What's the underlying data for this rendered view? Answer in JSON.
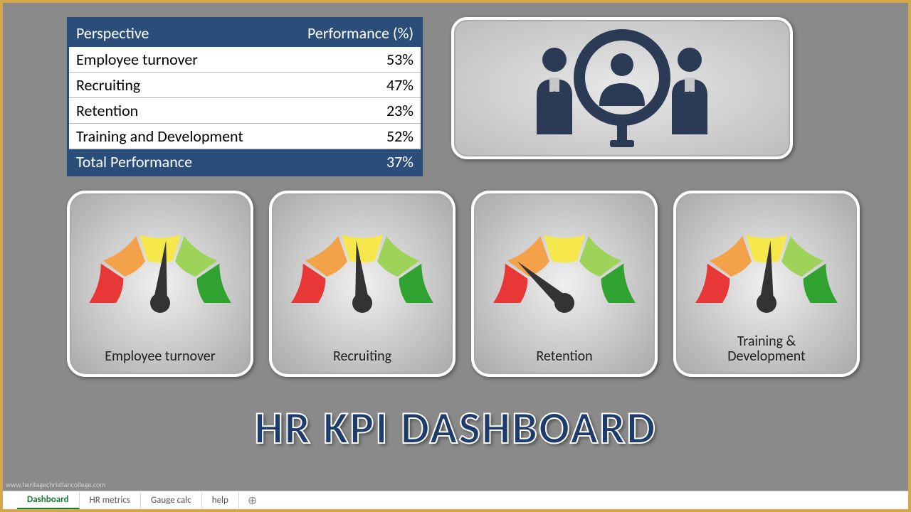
{
  "table": {
    "header_left": "Perspective",
    "header_right": "Performance (%)",
    "rows": [
      {
        "label": "Employee turnover",
        "value": "53%"
      },
      {
        "label": "Recruiting",
        "value": "47%"
      },
      {
        "label": "Retention",
        "value": "23%"
      },
      {
        "label": "Training and Development",
        "value": "52%"
      }
    ],
    "total_label": "Total Performance",
    "total_value": "37%",
    "header_bg": "#2a4d7a",
    "header_fg": "#ffffff",
    "body_bg": "#ffffff",
    "body_fg": "#000000"
  },
  "gauges": {
    "segment_colors": [
      "#e83737",
      "#f4a24a",
      "#f6e84a",
      "#9ed35a",
      "#2fa22f"
    ],
    "needle_color": "#333333",
    "items": [
      {
        "label": "Employee turnover",
        "value": 53
      },
      {
        "label": "Recruiting",
        "value": 47
      },
      {
        "label": "Retention",
        "value": 23
      },
      {
        "label": "Training &\nDevelopment",
        "value": 52
      }
    ]
  },
  "title": "HR KPI DASHBOARD",
  "watermark": "www.heritagechristiancollege.com",
  "tabs": {
    "items": [
      "Dashboard",
      "HR metrics",
      "Gauge calc",
      "help"
    ],
    "active_index": 0
  },
  "icon": {
    "fill": "#2b3b56"
  }
}
